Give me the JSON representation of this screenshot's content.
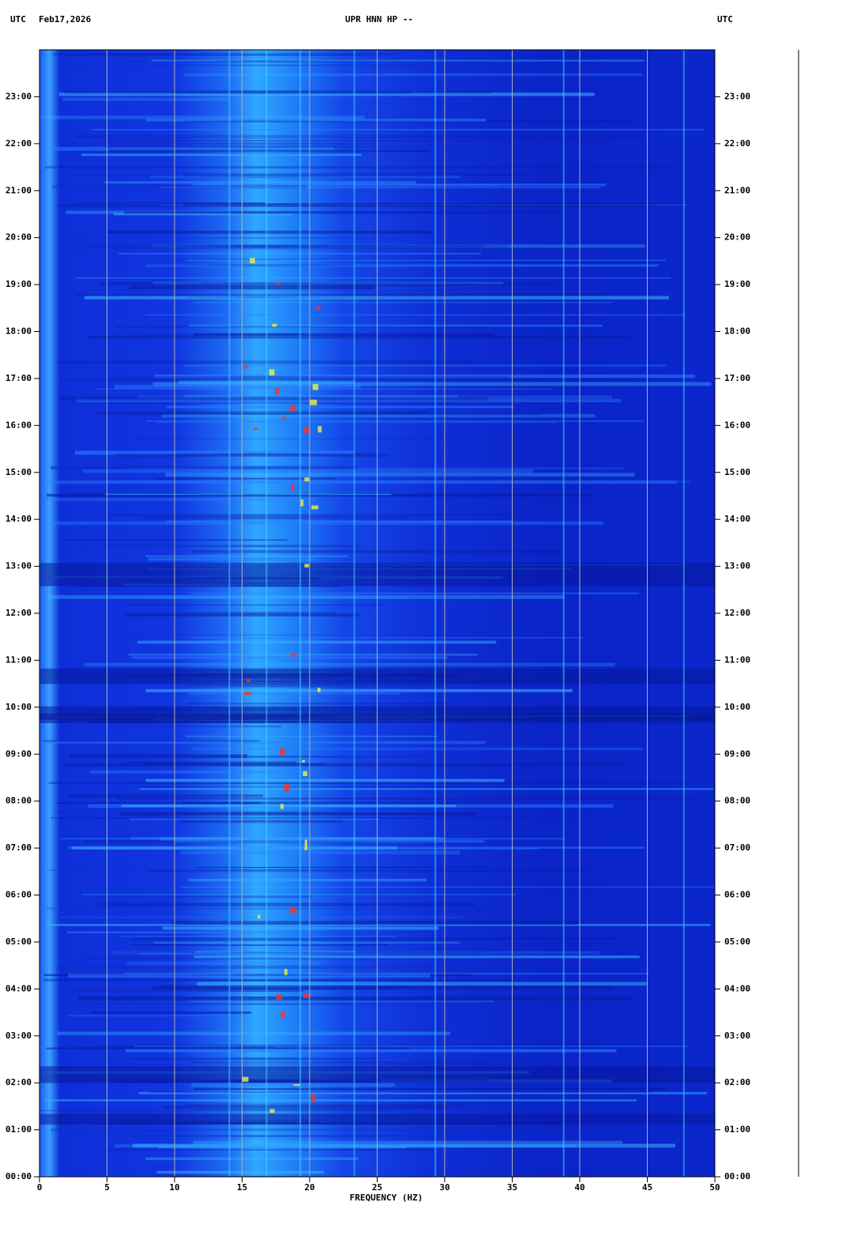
{
  "chart_data": {
    "type": "spectrogram",
    "header_left_zone": "UTC",
    "date": "Feb17,2026",
    "title": "UPR HNN HP --",
    "header_right_zone": "UTC",
    "xlabel": "FREQUENCY (HZ)",
    "xlim": [
      0,
      50
    ],
    "xticks": [
      0,
      5,
      10,
      15,
      20,
      25,
      30,
      35,
      40,
      45,
      50
    ],
    "ylim": [
      0,
      24
    ],
    "yticks": [
      {
        "value": 0,
        "label": "00:00"
      },
      {
        "value": 1,
        "label": "01:00"
      },
      {
        "value": 2,
        "label": "02:00"
      },
      {
        "value": 3,
        "label": "03:00"
      },
      {
        "value": 4,
        "label": "04:00"
      },
      {
        "value": 5,
        "label": "05:00"
      },
      {
        "value": 6,
        "label": "06:00"
      },
      {
        "value": 7,
        "label": "07:00"
      },
      {
        "value": 8,
        "label": "08:00"
      },
      {
        "value": 9,
        "label": "09:00"
      },
      {
        "value": 10,
        "label": "10:00"
      },
      {
        "value": 11,
        "label": "11:00"
      },
      {
        "value": 12,
        "label": "12:00"
      },
      {
        "value": 13,
        "label": "13:00"
      },
      {
        "value": 14,
        "label": "14:00"
      },
      {
        "value": 15,
        "label": "15:00"
      },
      {
        "value": 16,
        "label": "16:00"
      },
      {
        "value": 17,
        "label": "17:00"
      },
      {
        "value": 18,
        "label": "18:00"
      },
      {
        "value": 19,
        "label": "19:00"
      },
      {
        "value": 20,
        "label": "20:00"
      },
      {
        "value": 21,
        "label": "21:00"
      },
      {
        "value": 22,
        "label": "22:00"
      },
      {
        "value": 23,
        "label": "23:00"
      }
    ],
    "grid": true,
    "grid_color": "#b0b0b0"
  }
}
